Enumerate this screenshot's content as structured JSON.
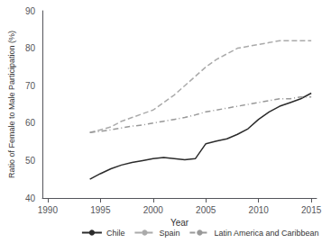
{
  "chart_data": {
    "type": "line",
    "xlabel": "Year",
    "ylabel": "Ratio of Female to Male Participation (%)",
    "x": [
      1994,
      1995,
      1996,
      1997,
      1998,
      1999,
      2000,
      2001,
      2002,
      2003,
      2004,
      2005,
      2006,
      2007,
      2008,
      2009,
      2010,
      2011,
      2012,
      2013,
      2014,
      2015
    ],
    "series": [
      {
        "name": "Chile",
        "color": "#2b2b2b",
        "line_style": "solid",
        "values": [
          45.0,
          46.5,
          47.8,
          48.8,
          49.5,
          50.0,
          50.5,
          50.8,
          50.5,
          50.2,
          50.5,
          54.5,
          55.2,
          55.8,
          57.0,
          58.5,
          61.0,
          63.0,
          64.5,
          65.5,
          66.5,
          68.0
        ]
      },
      {
        "name": "Spain",
        "color": "#aaaaaa",
        "line_style": "dashed",
        "values": [
          57.5,
          58.2,
          59.0,
          60.5,
          61.5,
          62.5,
          63.5,
          65.5,
          67.5,
          70.0,
          72.5,
          75.0,
          77.0,
          78.5,
          80.0,
          80.5,
          81.0,
          81.5,
          82.0,
          82.0,
          82.0,
          82.0
        ]
      },
      {
        "name": "Latin America and Caribbean",
        "color": "#999999",
        "line_style": "dashdot",
        "values": [
          57.5,
          57.8,
          58.2,
          58.7,
          59.2,
          59.5,
          60.0,
          60.5,
          61.0,
          61.5,
          62.2,
          63.0,
          63.5,
          64.0,
          64.5,
          65.0,
          65.5,
          66.0,
          66.5,
          66.5,
          67.0,
          67.0
        ]
      }
    ],
    "xlim": [
      1989.5,
      2015.5
    ],
    "xticks": [
      1990,
      1995,
      2000,
      2005,
      2010,
      2015
    ],
    "ylim": [
      40,
      90
    ],
    "yticks": [
      40,
      50,
      60,
      70,
      80,
      90
    ],
    "legend": "lower right",
    "grid": false
  }
}
